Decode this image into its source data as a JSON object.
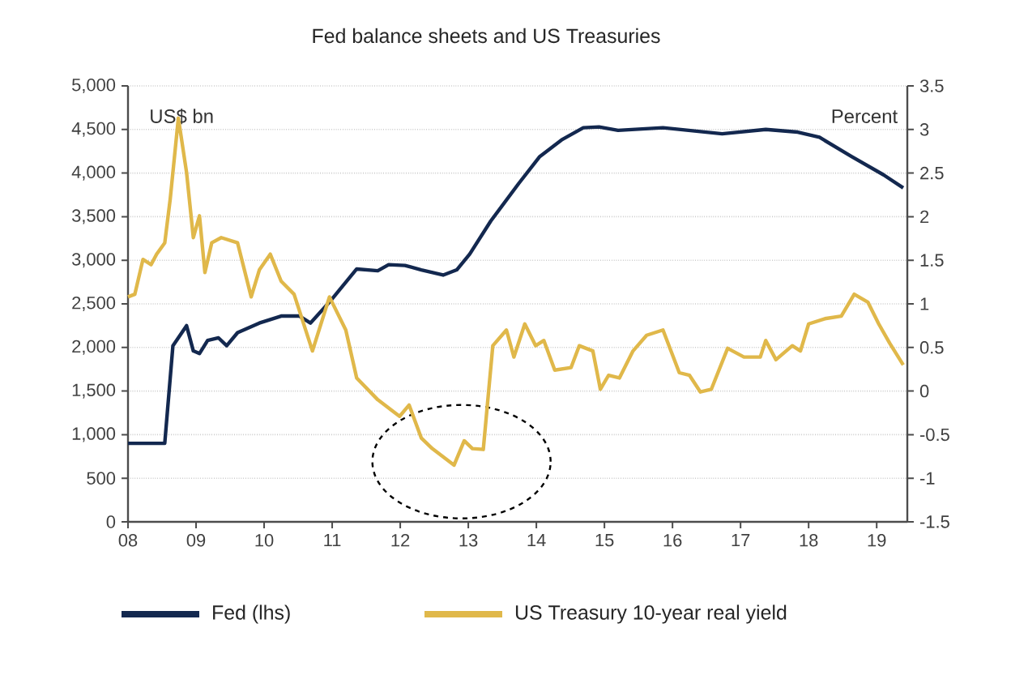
{
  "chart_data": {
    "type": "line",
    "title": "Fed balance sheets and US Treasuries",
    "ylabel": "US$ bn",
    "y2label": "Percent",
    "xlim": [
      8,
      19.45
    ],
    "xticks": [
      {
        "value": 8,
        "label": "08"
      },
      {
        "value": 9,
        "label": "09"
      },
      {
        "value": 10,
        "label": "10"
      },
      {
        "value": 11,
        "label": "11"
      },
      {
        "value": 12,
        "label": "12"
      },
      {
        "value": 13,
        "label": "13"
      },
      {
        "value": 14,
        "label": "14"
      },
      {
        "value": 15,
        "label": "15"
      },
      {
        "value": 16,
        "label": "16"
      },
      {
        "value": 17,
        "label": "17"
      },
      {
        "value": 18,
        "label": "18"
      },
      {
        "value": 19,
        "label": "19"
      }
    ],
    "ylim": [
      0,
      5000
    ],
    "yticks": [
      0,
      500,
      {
        "value": 1000,
        "label": "1,000"
      },
      {
        "value": 1500,
        "label": "1,500"
      },
      {
        "value": 2000,
        "label": "2,000"
      },
      {
        "value": 2500,
        "label": "2,500"
      },
      {
        "value": 3000,
        "label": "3,000"
      },
      {
        "value": 3500,
        "label": "3,500"
      },
      {
        "value": 4000,
        "label": "4,000"
      },
      {
        "value": 4500,
        "label": "4,500"
      },
      {
        "value": 5000,
        "label": "5,000"
      }
    ],
    "y2lim": [
      -1.5,
      3.5
    ],
    "y2ticks": [
      -1.5,
      -1,
      -0.5,
      0,
      0.5,
      1,
      1.5,
      2,
      2.5,
      3,
      3.5
    ],
    "grid": "y",
    "legend": "bottom",
    "line_style": "solid",
    "marker": "none",
    "series": [
      {
        "name": "Fed (lhs)",
        "color": "#13284f",
        "x": [
          8.0,
          8.54,
          8.66,
          8.86,
          8.96,
          9.05,
          9.17,
          9.33,
          9.45,
          9.61,
          9.93,
          10.25,
          10.52,
          10.68,
          10.96,
          11.36,
          11.67,
          11.83,
          12.07,
          12.31,
          12.63,
          12.83,
          13.02,
          13.33,
          13.74,
          14.05,
          14.37,
          14.69,
          14.92,
          15.2,
          15.86,
          16.73,
          17.37,
          17.84,
          18.16,
          18.63,
          19.1,
          19.39
        ],
        "values": [
          900,
          900,
          2020,
          2250,
          1960,
          1930,
          2080,
          2110,
          2020,
          2170,
          2280,
          2360,
          2360,
          2280,
          2520,
          2900,
          2880,
          2950,
          2940,
          2890,
          2830,
          2890,
          3070,
          3450,
          3880,
          4190,
          4380,
          4520,
          4530,
          4490,
          4520,
          4450,
          4500,
          4470,
          4410,
          4190,
          3980,
          3830
        ]
      },
      {
        "name": "US Treasury 10-year real yield",
        "color": "#e0b84a",
        "axis": "y2",
        "x": [
          8.0,
          8.1,
          8.22,
          8.34,
          8.42,
          8.54,
          8.62,
          8.74,
          8.86,
          8.96,
          9.05,
          9.13,
          9.23,
          9.37,
          9.61,
          9.81,
          9.93,
          10.09,
          10.25,
          10.44,
          10.71,
          10.96,
          11.2,
          11.36,
          11.67,
          11.99,
          12.13,
          12.31,
          12.47,
          12.79,
          12.94,
          13.06,
          13.22,
          13.36,
          13.56,
          13.67,
          13.83,
          13.99,
          14.11,
          14.27,
          14.51,
          14.63,
          14.83,
          14.94,
          15.06,
          15.22,
          15.42,
          15.62,
          15.86,
          16.1,
          16.25,
          16.41,
          16.57,
          16.81,
          17.05,
          17.29,
          17.37,
          17.52,
          17.76,
          17.88,
          18.0,
          18.24,
          18.48,
          18.67,
          18.87,
          19.03,
          19.19,
          19.39
        ],
        "values": [
          1.08,
          1.11,
          1.51,
          1.45,
          1.57,
          1.7,
          2.2,
          3.13,
          2.51,
          1.76,
          2.01,
          1.36,
          1.7,
          1.76,
          1.7,
          1.08,
          1.39,
          1.57,
          1.26,
          1.11,
          0.46,
          1.08,
          0.7,
          0.15,
          -0.1,
          -0.29,
          -0.16,
          -0.54,
          -0.66,
          -0.85,
          -0.57,
          -0.66,
          -0.67,
          0.52,
          0.7,
          0.39,
          0.77,
          0.52,
          0.58,
          0.24,
          0.27,
          0.52,
          0.46,
          0.02,
          0.18,
          0.15,
          0.46,
          0.64,
          0.7,
          0.21,
          0.18,
          -0.01,
          0.02,
          0.49,
          0.39,
          0.39,
          0.58,
          0.36,
          0.52,
          0.46,
          0.77,
          0.83,
          0.86,
          1.11,
          1.02,
          0.77,
          0.55,
          0.3
        ]
      }
    ]
  }
}
